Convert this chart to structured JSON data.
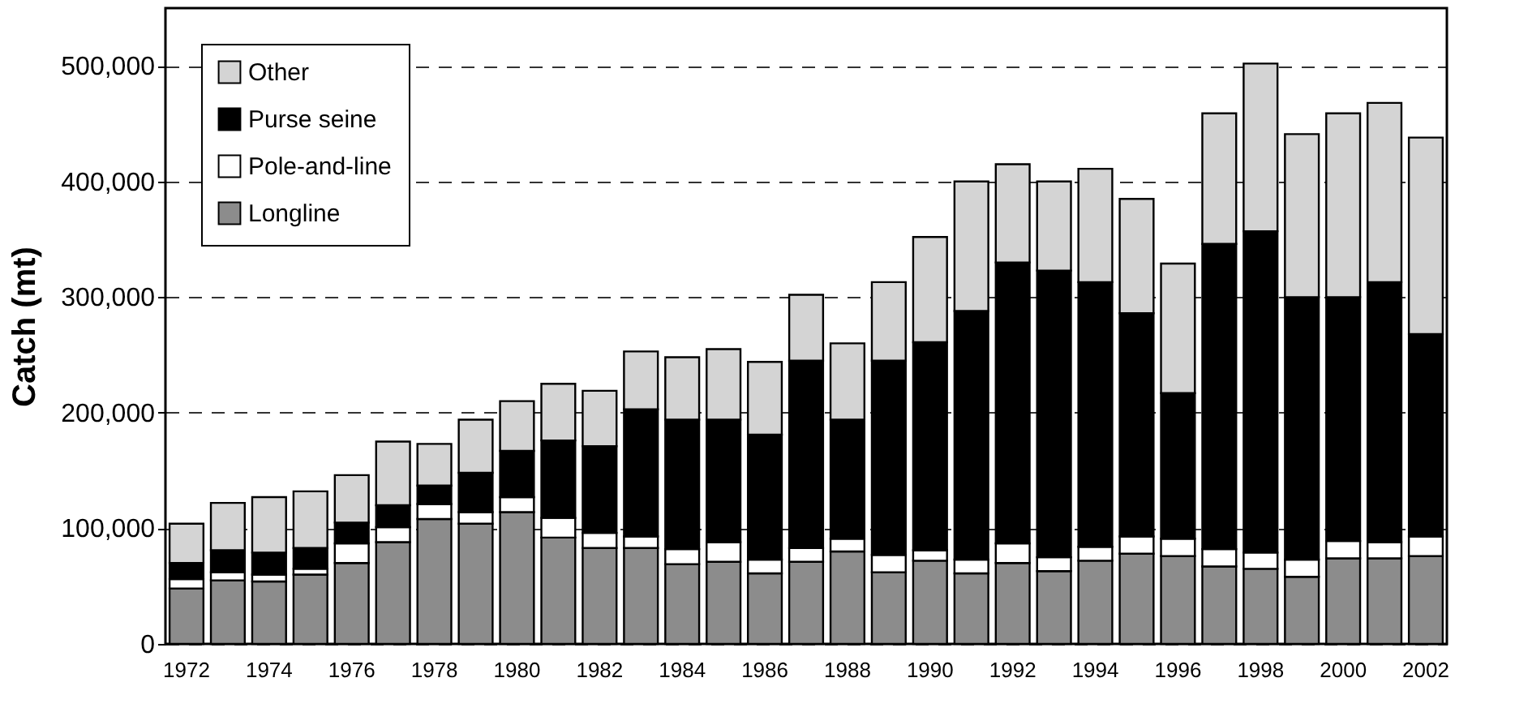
{
  "chart_data": {
    "type": "bar",
    "stacked": true,
    "ylabel": "Catch (mt)",
    "categories": [
      "1972",
      null,
      "1974",
      null,
      "1976",
      null,
      "1978",
      null,
      "1980",
      null,
      "1982",
      null,
      "1984",
      null,
      "1986",
      null,
      "1988",
      null,
      "1990",
      null,
      "1992",
      null,
      "1994",
      null,
      "1996",
      null,
      "1998",
      null,
      "2000",
      null,
      "2002"
    ],
    "series": [
      {
        "name": "Longline",
        "color": "#8c8c8c",
        "values": [
          48000,
          55000,
          54000,
          60000,
          70000,
          88000,
          108000,
          104000,
          114000,
          92000,
          83000,
          83000,
          69000,
          71000,
          61000,
          71000,
          80000,
          62000,
          72000,
          61000,
          70000,
          63000,
          72000,
          78000,
          76000,
          67000,
          65000,
          58000,
          74000,
          74000,
          76000
        ]
      },
      {
        "name": "Pole-and-line",
        "color": "#ffffff",
        "values": [
          8000,
          7000,
          6000,
          5000,
          17000,
          13000,
          13000,
          10000,
          13000,
          17000,
          13000,
          10000,
          13000,
          17000,
          12000,
          12000,
          11000,
          15000,
          9000,
          12000,
          17000,
          12000,
          12000,
          15000,
          15000,
          15000,
          14000,
          15000,
          15000,
          14000,
          17000
        ]
      },
      {
        "name": "Purse seine",
        "color": "#000000",
        "values": [
          14000,
          19000,
          19000,
          18000,
          18000,
          19000,
          16000,
          34000,
          40000,
          67000,
          75000,
          110000,
          112000,
          106000,
          108000,
          162000,
          103000,
          168000,
          180000,
          215000,
          243000,
          248000,
          229000,
          193000,
          126000,
          264000,
          278000,
          227000,
          211000,
          225000,
          175000
        ]
      },
      {
        "name": "Other",
        "color": "#d4d4d4",
        "values": [
          34000,
          41000,
          48000,
          49000,
          41000,
          55000,
          36000,
          46000,
          43000,
          49000,
          48000,
          50000,
          54000,
          61000,
          63000,
          57000,
          66000,
          68000,
          91000,
          112000,
          85000,
          77000,
          98000,
          99000,
          112000,
          113000,
          145000,
          141000,
          159000,
          155000,
          170000
        ]
      }
    ],
    "ylim": [
      0,
      550000
    ],
    "yticks": [
      {
        "value": 0,
        "label": "0"
      },
      {
        "value": 100000,
        "label": "100,000"
      },
      {
        "value": 200000,
        "label": "200,000"
      },
      {
        "value": 300000,
        "label": "300,000"
      },
      {
        "value": 400000,
        "label": "400,000"
      },
      {
        "value": 500000,
        "label": "500,000"
      }
    ],
    "grid": "y",
    "legend": "top left"
  }
}
